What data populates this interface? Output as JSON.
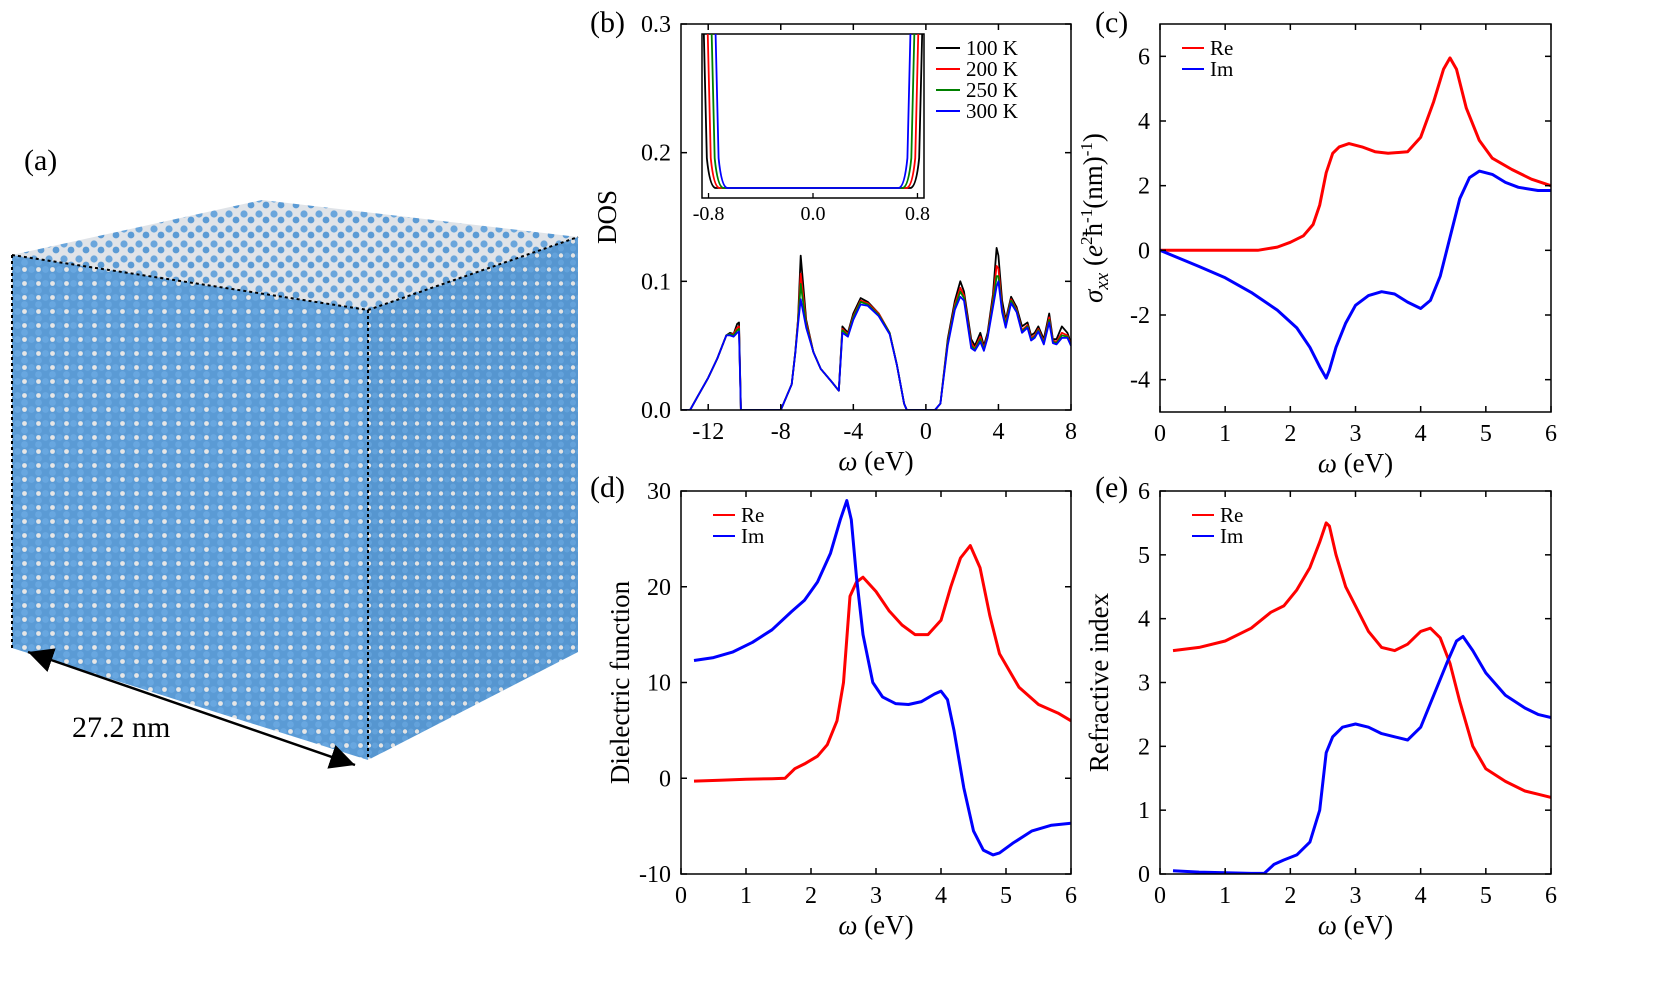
{
  "panel_a": {
    "label": "(a)",
    "dimension_label": "27.2 nm",
    "colors": {
      "atom_a": "#5b9bd5",
      "atom_b": "#e8e8e8"
    }
  },
  "chart_data": [
    {
      "panel": "(b)",
      "type": "line",
      "xlabel": "ω (eV)",
      "ylabel": "DOS",
      "xlim": [
        -13.5,
        8
      ],
      "ylim": [
        0,
        0.3
      ],
      "xticks": [
        -12,
        -8,
        -4,
        0,
        4,
        8
      ],
      "xticklabels": [
        "-12",
        "-8",
        "-4",
        "0",
        "4",
        "8"
      ],
      "yticks": [
        0,
        0.1,
        0.2,
        0.3
      ],
      "yticklabels": [
        "0.0",
        "0.1",
        "0.2",
        "0.3"
      ],
      "legend": "inset top-right",
      "series": [
        {
          "name": "100 K",
          "color": "#000000",
          "x": [
            -13.5,
            -13,
            -12.6,
            -12,
            -11.5,
            -11,
            -10.8,
            -10.6,
            -10.4,
            -10.3,
            -10.2,
            -8,
            -7.4,
            -7.2,
            -7.05,
            -6.9,
            -6.6,
            -6.2,
            -5.8,
            -5.2,
            -4.8,
            -4.6,
            -4.3,
            -4,
            -3.6,
            -3.2,
            -2.6,
            -2,
            -1.6,
            -1.2,
            -1.05,
            -0.8,
            0.5,
            0.8,
            1.2,
            1.6,
            1.9,
            2.1,
            2.5,
            2.7,
            3,
            3.2,
            3.4,
            3.7,
            3.9,
            4,
            4.2,
            4.4,
            4.7,
            5,
            5.3,
            5.6,
            5.8,
            6,
            6.2,
            6.5,
            6.8,
            7,
            7.2,
            7.5,
            7.8,
            8
          ],
          "y": [
            0.0,
            0.0,
            0.01,
            0.025,
            0.04,
            0.058,
            0.06,
            0.059,
            0.067,
            0.068,
            0.0,
            0.0,
            0.02,
            0.045,
            0.07,
            0.12,
            0.07,
            0.045,
            0.032,
            0.022,
            0.015,
            0.065,
            0.06,
            0.075,
            0.087,
            0.084,
            0.075,
            0.06,
            0.035,
            0.005,
            0.0,
            0.0,
            0.0,
            0.005,
            0.055,
            0.085,
            0.1,
            0.092,
            0.055,
            0.05,
            0.06,
            0.05,
            0.06,
            0.09,
            0.126,
            0.12,
            0.085,
            0.07,
            0.088,
            0.08,
            0.065,
            0.068,
            0.058,
            0.06,
            0.065,
            0.055,
            0.075,
            0.055,
            0.055,
            0.065,
            0.06,
            0.052
          ]
        },
        {
          "name": "200 K",
          "color": "#ff0000",
          "x": [
            -13.5,
            -13,
            -12.6,
            -12,
            -11.5,
            -11,
            -10.8,
            -10.6,
            -10.4,
            -10.3,
            -10.2,
            -8,
            -7.4,
            -7.2,
            -7.05,
            -6.9,
            -6.6,
            -6.2,
            -5.8,
            -5.2,
            -4.8,
            -4.6,
            -4.3,
            -4,
            -3.6,
            -3.2,
            -2.6,
            -2,
            -1.6,
            -1.2,
            -1.05,
            -0.8,
            0.5,
            0.8,
            1.2,
            1.6,
            1.9,
            2.1,
            2.5,
            2.7,
            3,
            3.2,
            3.4,
            3.7,
            3.9,
            4,
            4.2,
            4.4,
            4.7,
            5,
            5.3,
            5.6,
            5.8,
            6,
            6.2,
            6.5,
            6.8,
            7,
            7.2,
            7.5,
            7.8,
            8
          ],
          "y": [
            0.0,
            0.0,
            0.01,
            0.025,
            0.04,
            0.058,
            0.059,
            0.059,
            0.064,
            0.065,
            0.0,
            0.0,
            0.02,
            0.045,
            0.07,
            0.106,
            0.068,
            0.045,
            0.032,
            0.022,
            0.015,
            0.063,
            0.059,
            0.073,
            0.085,
            0.083,
            0.075,
            0.06,
            0.035,
            0.005,
            0.0,
            0.0,
            0.0,
            0.005,
            0.053,
            0.082,
            0.095,
            0.089,
            0.052,
            0.048,
            0.057,
            0.048,
            0.058,
            0.086,
            0.112,
            0.11,
            0.08,
            0.068,
            0.086,
            0.078,
            0.062,
            0.066,
            0.056,
            0.058,
            0.063,
            0.053,
            0.072,
            0.054,
            0.053,
            0.06,
            0.058,
            0.051
          ]
        },
        {
          "name": "250 K",
          "color": "#008000",
          "x": [
            -13.5,
            -13,
            -12.6,
            -12,
            -11.5,
            -11,
            -10.8,
            -10.6,
            -10.4,
            -10.3,
            -10.2,
            -8,
            -7.4,
            -7.2,
            -7.05,
            -6.9,
            -6.6,
            -6.2,
            -5.8,
            -5.2,
            -4.8,
            -4.6,
            -4.3,
            -4,
            -3.6,
            -3.2,
            -2.6,
            -2,
            -1.6,
            -1.2,
            -1.05,
            -0.8,
            0.5,
            0.8,
            1.2,
            1.6,
            1.9,
            2.1,
            2.5,
            2.7,
            3,
            3.2,
            3.4,
            3.7,
            3.9,
            4,
            4.2,
            4.4,
            4.7,
            5,
            5.3,
            5.6,
            5.8,
            6,
            6.2,
            6.5,
            6.8,
            7,
            7.2,
            7.5,
            7.8,
            8
          ],
          "y": [
            0.0,
            0.0,
            0.01,
            0.025,
            0.04,
            0.058,
            0.059,
            0.058,
            0.062,
            0.063,
            0.0,
            0.0,
            0.02,
            0.045,
            0.068,
            0.098,
            0.066,
            0.045,
            0.032,
            0.022,
            0.015,
            0.062,
            0.058,
            0.072,
            0.084,
            0.082,
            0.074,
            0.06,
            0.035,
            0.005,
            0.0,
            0.0,
            0.0,
            0.005,
            0.052,
            0.08,
            0.092,
            0.087,
            0.05,
            0.047,
            0.055,
            0.047,
            0.057,
            0.083,
            0.104,
            0.104,
            0.078,
            0.066,
            0.085,
            0.077,
            0.061,
            0.065,
            0.055,
            0.057,
            0.062,
            0.052,
            0.07,
            0.053,
            0.052,
            0.058,
            0.057,
            0.05
          ]
        },
        {
          "name": "300 K",
          "color": "#0000ff",
          "x": [
            -13.5,
            -13,
            -12.6,
            -12,
            -11.5,
            -11,
            -10.8,
            -10.6,
            -10.4,
            -10.3,
            -10.2,
            -8,
            -7.4,
            -7.2,
            -7.05,
            -6.9,
            -6.6,
            -6.2,
            -5.8,
            -5.2,
            -4.8,
            -4.6,
            -4.3,
            -4,
            -3.6,
            -3.2,
            -2.6,
            -2,
            -1.6,
            -1.2,
            -1.05,
            -0.8,
            0.5,
            0.8,
            1.2,
            1.6,
            1.9,
            2.1,
            2.5,
            2.7,
            3,
            3.2,
            3.4,
            3.7,
            3.9,
            4,
            4.2,
            4.4,
            4.7,
            5,
            5.3,
            5.6,
            5.8,
            6,
            6.2,
            6.5,
            6.8,
            7,
            7.2,
            7.5,
            7.8,
            8
          ],
          "y": [
            0.0,
            0.0,
            0.01,
            0.025,
            0.04,
            0.058,
            0.058,
            0.057,
            0.06,
            0.061,
            0.0,
            0.0,
            0.02,
            0.044,
            0.066,
            0.086,
            0.064,
            0.045,
            0.032,
            0.022,
            0.015,
            0.06,
            0.057,
            0.07,
            0.082,
            0.081,
            0.073,
            0.059,
            0.035,
            0.005,
            0.0,
            0.0,
            0.0,
            0.005,
            0.05,
            0.078,
            0.088,
            0.085,
            0.048,
            0.046,
            0.053,
            0.046,
            0.056,
            0.08,
            0.096,
            0.1,
            0.076,
            0.064,
            0.083,
            0.076,
            0.06,
            0.064,
            0.054,
            0.056,
            0.061,
            0.051,
            0.068,
            0.052,
            0.051,
            0.056,
            0.056,
            0.05
          ]
        }
      ],
      "inset": {
        "type": "line",
        "xlim": [
          -0.85,
          0.85
        ],
        "xticks": [
          -0.8,
          0,
          0.8
        ],
        "xticklabels": [
          "-0.8",
          "0.0",
          "0.8"
        ],
        "gaps": [
          {
            "name": "100 K",
            "color": "#000000",
            "edge": 0.79
          },
          {
            "name": "200 K",
            "color": "#ff0000",
            "edge": 0.76
          },
          {
            "name": "250 K",
            "color": "#008000",
            "edge": 0.73
          },
          {
            "name": "300 K",
            "color": "#0000ff",
            "edge": 0.7
          }
        ]
      }
    },
    {
      "panel": "(c)",
      "type": "line",
      "xlabel": "ω (eV)",
      "ylabel": "σxx (e²ħ⁻¹(nm)⁻¹)",
      "xlim": [
        0,
        6
      ],
      "ylim": [
        -5,
        7
      ],
      "xticks": [
        0,
        1,
        2,
        3,
        4,
        5,
        6
      ],
      "yticks": [
        -4,
        -2,
        0,
        2,
        4,
        6
      ],
      "legend": "top-left",
      "series": [
        {
          "name": "Re",
          "color": "#ff0000",
          "x": [
            0,
            0.5,
            1,
            1.5,
            1.8,
            2,
            2.2,
            2.35,
            2.45,
            2.55,
            2.65,
            2.75,
            2.9,
            3.1,
            3.3,
            3.5,
            3.8,
            4,
            4.2,
            4.35,
            4.45,
            4.55,
            4.7,
            4.9,
            5.1,
            5.4,
            5.7,
            6
          ],
          "y": [
            0,
            0,
            0,
            0,
            0.1,
            0.25,
            0.45,
            0.8,
            1.4,
            2.4,
            3.0,
            3.2,
            3.3,
            3.2,
            3.05,
            3.0,
            3.05,
            3.5,
            4.6,
            5.6,
            5.95,
            5.6,
            4.4,
            3.4,
            2.85,
            2.5,
            2.2,
            2.0
          ]
        },
        {
          "name": "Im",
          "color": "#0000ff",
          "x": [
            0,
            0.3,
            0.6,
            1,
            1.4,
            1.8,
            2.1,
            2.3,
            2.45,
            2.55,
            2.6,
            2.7,
            2.85,
            3,
            3.2,
            3.4,
            3.6,
            3.8,
            4,
            4.15,
            4.3,
            4.45,
            4.6,
            4.75,
            4.9,
            5.1,
            5.3,
            5.5,
            5.8,
            6
          ],
          "y": [
            0,
            -0.25,
            -0.5,
            -0.85,
            -1.3,
            -1.85,
            -2.4,
            -3.0,
            -3.6,
            -3.95,
            -3.7,
            -3.0,
            -2.25,
            -1.7,
            -1.4,
            -1.28,
            -1.35,
            -1.6,
            -1.8,
            -1.55,
            -0.8,
            0.4,
            1.6,
            2.25,
            2.45,
            2.35,
            2.1,
            1.95,
            1.85,
            1.85
          ]
        }
      ]
    },
    {
      "panel": "(d)",
      "type": "line",
      "xlabel": "ω (eV)",
      "ylabel": "Dielectric function",
      "xlim": [
        0,
        6
      ],
      "ylim": [
        -10,
        30
      ],
      "xticks": [
        0,
        1,
        2,
        3,
        4,
        5,
        6
      ],
      "yticks": [
        -10,
        0,
        10,
        20,
        30
      ],
      "legend": "top-left",
      "series": [
        {
          "name": "Re",
          "color": "#ff0000",
          "x": [
            0.2,
            0.6,
            1,
            1.4,
            1.6,
            1.75,
            1.9,
            2.1,
            2.25,
            2.4,
            2.5,
            2.6,
            2.7,
            2.8,
            3,
            3.2,
            3.4,
            3.6,
            3.8,
            4,
            4.15,
            4.3,
            4.45,
            4.6,
            4.75,
            4.9,
            5.2,
            5.5,
            5.8,
            6
          ],
          "y": [
            -0.3,
            -0.2,
            -0.1,
            -0.05,
            0,
            1,
            1.5,
            2.3,
            3.5,
            6,
            10,
            19,
            20.5,
            21,
            19.5,
            17.5,
            16,
            15,
            15,
            16.5,
            20,
            23,
            24.3,
            22,
            17,
            13,
            9.5,
            7.7,
            6.8,
            6.0
          ]
        },
        {
          "name": "Im",
          "color": "#0000ff",
          "x": [
            0.2,
            0.5,
            0.8,
            1.1,
            1.4,
            1.7,
            1.9,
            2.1,
            2.3,
            2.45,
            2.55,
            2.62,
            2.7,
            2.8,
            2.95,
            3.1,
            3.3,
            3.5,
            3.7,
            3.9,
            4,
            4.1,
            4.2,
            4.35,
            4.5,
            4.65,
            4.8,
            4.9,
            5.1,
            5.4,
            5.7,
            6
          ],
          "y": [
            12.3,
            12.6,
            13.2,
            14.2,
            15.5,
            17.4,
            18.6,
            20.5,
            23.5,
            27,
            29,
            27,
            21,
            15,
            10,
            8.5,
            7.8,
            7.7,
            8,
            8.8,
            9.1,
            8.2,
            5,
            -1,
            -5.5,
            -7.5,
            -8,
            -7.8,
            -6.8,
            -5.5,
            -4.9,
            -4.7
          ]
        }
      ]
    },
    {
      "panel": "(e)",
      "type": "line",
      "xlabel": "ω (eV)",
      "ylabel": "Refractive index",
      "xlim": [
        0,
        6
      ],
      "ylim": [
        0,
        6
      ],
      "xticks": [
        0,
        1,
        2,
        3,
        4,
        5,
        6
      ],
      "yticks": [
        0,
        1,
        2,
        3,
        4,
        5,
        6
      ],
      "legend": "top-left",
      "series": [
        {
          "name": "Re",
          "color": "#ff0000",
          "x": [
            0.2,
            0.6,
            1,
            1.4,
            1.7,
            1.9,
            2.1,
            2.3,
            2.45,
            2.55,
            2.6,
            2.7,
            2.85,
            3,
            3.2,
            3.4,
            3.6,
            3.8,
            4,
            4.15,
            4.3,
            4.45,
            4.6,
            4.8,
            5,
            5.3,
            5.6,
            5.8,
            6
          ],
          "y": [
            3.5,
            3.55,
            3.65,
            3.85,
            4.1,
            4.2,
            4.45,
            4.8,
            5.2,
            5.5,
            5.45,
            5.0,
            4.5,
            4.2,
            3.8,
            3.55,
            3.5,
            3.6,
            3.8,
            3.85,
            3.7,
            3.3,
            2.7,
            2.0,
            1.65,
            1.45,
            1.3,
            1.25,
            1.2
          ]
        },
        {
          "name": "Im",
          "color": "#0000ff",
          "x": [
            0.2,
            0.6,
            1,
            1.4,
            1.6,
            1.75,
            1.9,
            2.1,
            2.3,
            2.45,
            2.55,
            2.65,
            2.8,
            3,
            3.2,
            3.4,
            3.6,
            3.8,
            4,
            4.2,
            4.4,
            4.55,
            4.65,
            4.8,
            5,
            5.3,
            5.6,
            5.8,
            6
          ],
          "y": [
            0.05,
            0.03,
            0.02,
            0.01,
            0.01,
            0.15,
            0.22,
            0.3,
            0.5,
            1.0,
            1.9,
            2.15,
            2.3,
            2.35,
            2.3,
            2.2,
            2.15,
            2.1,
            2.3,
            2.8,
            3.3,
            3.65,
            3.72,
            3.5,
            3.15,
            2.8,
            2.6,
            2.5,
            2.45
          ]
        }
      ]
    }
  ]
}
